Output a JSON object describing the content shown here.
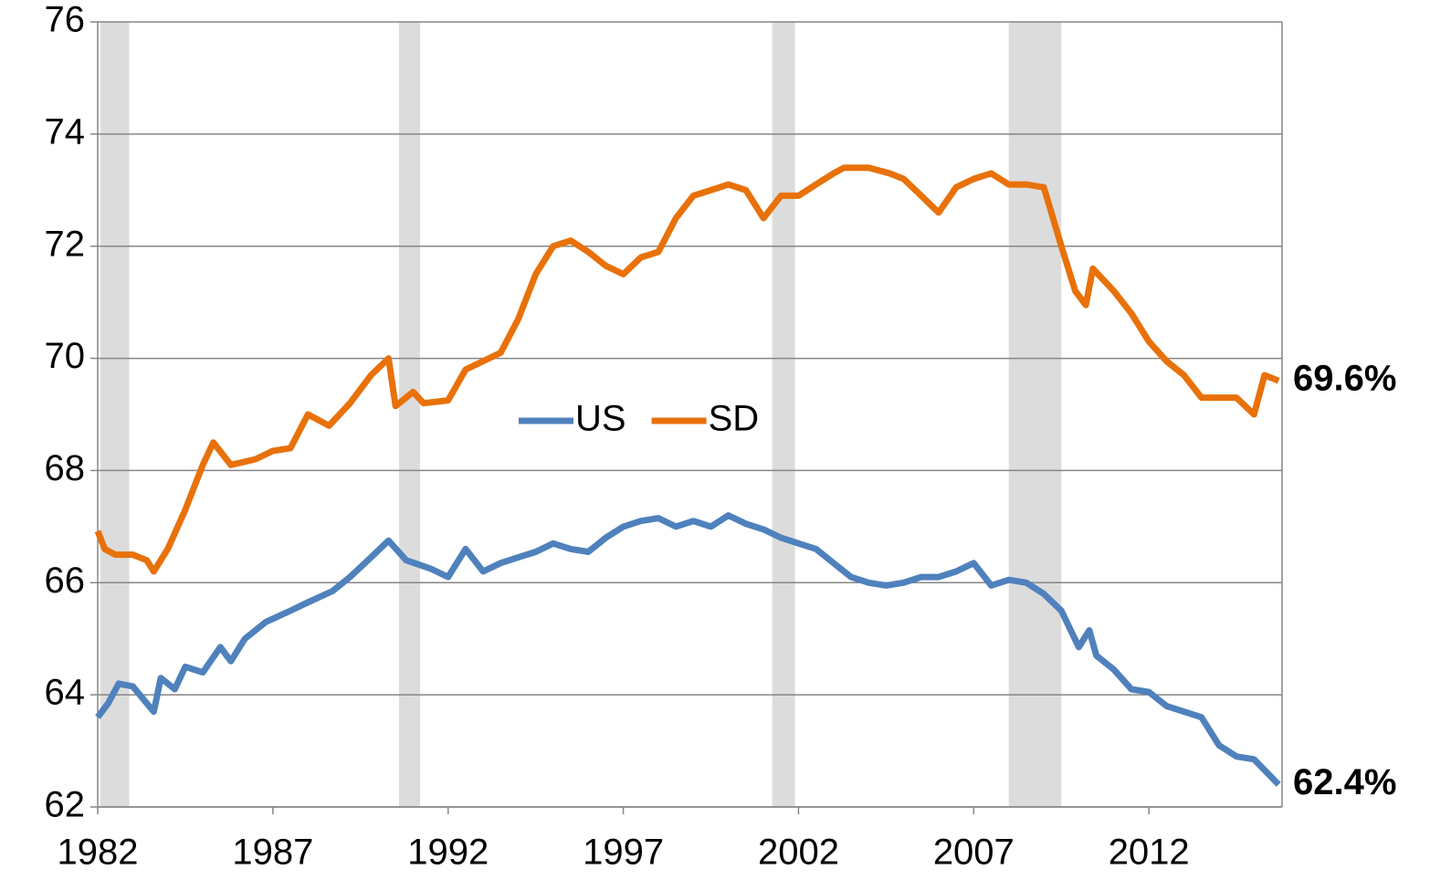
{
  "chart_data": {
    "type": "line",
    "xlim": [
      1982,
      2015.8
    ],
    "xticks": [
      1982,
      1987,
      1992,
      1997,
      2002,
      2007,
      2012
    ],
    "ylim": [
      62,
      76
    ],
    "yticks": [
      62,
      64,
      66,
      68,
      70,
      72,
      74,
      76
    ],
    "grid": true,
    "legend": "center",
    "recessions": [
      [
        1982.08,
        1982.9
      ],
      [
        1990.6,
        1991.2
      ],
      [
        2001.25,
        2001.9
      ],
      [
        2008.0,
        2009.5
      ]
    ],
    "series": [
      {
        "name": "US",
        "color": "#4f81bd",
        "end_label": "62.4%",
        "end_label_color": "#4a6cc8",
        "x": [
          1982.0,
          1982.3,
          1982.6,
          1983.0,
          1983.4,
          1983.6,
          1983.8,
          1984.2,
          1984.5,
          1985.0,
          1985.5,
          1985.8,
          1986.2,
          1986.8,
          1987.5,
          1988.0,
          1988.7,
          1989.2,
          1989.8,
          1990.3,
          1990.8,
          1991.5,
          1992.0,
          1992.5,
          1993.0,
          1993.5,
          1994.0,
          1994.5,
          1995.0,
          1995.5,
          1996.0,
          1996.5,
          1997.0,
          1997.5,
          1998.0,
          1998.5,
          1999.0,
          1999.5,
          2000.0,
          2000.5,
          2001.0,
          2001.5,
          2002.0,
          2002.5,
          2003.0,
          2003.5,
          2004.0,
          2004.5,
          2005.0,
          2005.5,
          2006.0,
          2006.5,
          2007.0,
          2007.5,
          2008.0,
          2008.5,
          2009.0,
          2009.5,
          2010.0,
          2010.3,
          2010.5,
          2011.0,
          2011.5,
          2012.0,
          2012.5,
          2013.0,
          2013.5,
          2014.0,
          2014.5,
          2015.0,
          2015.7
        ],
        "values": [
          63.6,
          63.85,
          64.2,
          64.15,
          63.85,
          63.7,
          64.3,
          64.1,
          64.5,
          64.4,
          64.85,
          64.6,
          65.0,
          65.3,
          65.5,
          65.65,
          65.85,
          66.1,
          66.45,
          66.75,
          66.4,
          66.25,
          66.1,
          66.6,
          66.2,
          66.35,
          66.45,
          66.55,
          66.7,
          66.6,
          66.55,
          66.8,
          67.0,
          67.1,
          67.15,
          67.0,
          67.1,
          67.0,
          67.2,
          67.05,
          66.95,
          66.8,
          66.7,
          66.6,
          66.35,
          66.1,
          66.0,
          65.95,
          66.0,
          66.1,
          66.1,
          66.2,
          66.35,
          65.95,
          66.05,
          66.0,
          65.8,
          65.5,
          64.85,
          65.15,
          64.7,
          64.45,
          64.1,
          64.05,
          63.8,
          63.7,
          63.6,
          63.1,
          62.9,
          62.85,
          62.4
        ]
      },
      {
        "name": "SD",
        "color": "#e8710a",
        "end_label": "69.6%",
        "end_label_color": "#e46c0a",
        "x": [
          1982.0,
          1982.2,
          1982.5,
          1983.0,
          1983.4,
          1983.6,
          1984.0,
          1984.5,
          1985.0,
          1985.3,
          1985.8,
          1986.5,
          1987.0,
          1987.5,
          1988.0,
          1988.6,
          1989.2,
          1989.8,
          1990.3,
          1990.5,
          1991.0,
          1991.3,
          1992.0,
          1992.5,
          1993.0,
          1993.5,
          1994.0,
          1994.5,
          1995.0,
          1995.5,
          1996.0,
          1996.5,
          1997.0,
          1997.5,
          1998.0,
          1998.5,
          1999.0,
          1999.5,
          2000.0,
          2000.5,
          2001.0,
          2001.5,
          2002.0,
          2002.5,
          2003.0,
          2003.3,
          2004.0,
          2004.6,
          2005.0,
          2005.5,
          2006.0,
          2006.5,
          2007.0,
          2007.5,
          2008.0,
          2008.5,
          2009.0,
          2009.5,
          2009.9,
          2010.2,
          2010.4,
          2011.0,
          2011.5,
          2012.0,
          2012.5,
          2013.0,
          2013.5,
          2014.0,
          2014.5,
          2015.0,
          2015.3,
          2015.7
        ],
        "values": [
          66.92,
          66.6,
          66.5,
          66.5,
          66.4,
          66.2,
          66.6,
          67.3,
          68.1,
          68.5,
          68.1,
          68.2,
          68.35,
          68.4,
          69.0,
          68.8,
          69.2,
          69.7,
          70.0,
          69.15,
          69.4,
          69.2,
          69.25,
          69.8,
          69.95,
          70.1,
          70.7,
          71.5,
          72.0,
          72.1,
          71.9,
          71.65,
          71.5,
          71.8,
          71.9,
          72.5,
          72.9,
          73.0,
          73.1,
          73.0,
          72.5,
          72.9,
          72.9,
          73.1,
          73.3,
          73.4,
          73.4,
          73.3,
          73.2,
          72.9,
          72.6,
          73.05,
          73.2,
          73.3,
          73.1,
          73.1,
          73.05,
          72.0,
          71.2,
          70.95,
          71.6,
          71.2,
          70.8,
          70.3,
          69.95,
          69.7,
          69.3,
          69.3,
          69.3,
          69.0,
          69.7,
          69.6
        ]
      }
    ]
  }
}
